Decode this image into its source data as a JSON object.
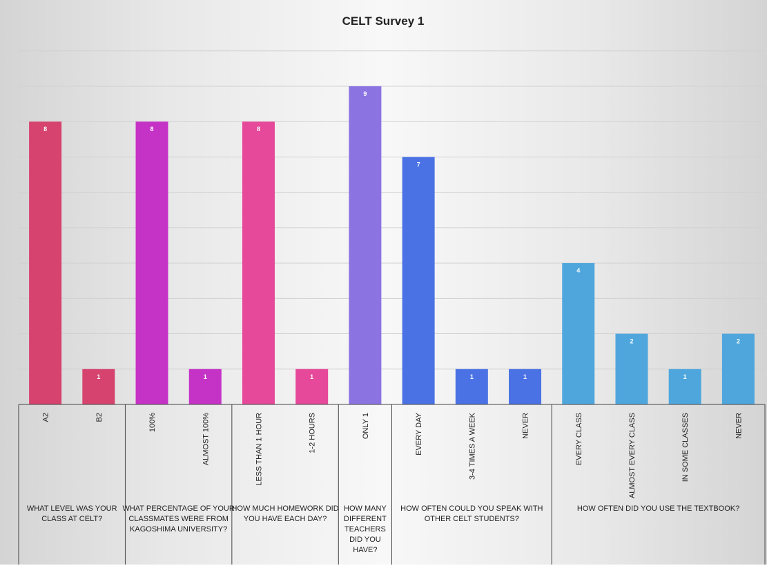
{
  "chart_data": {
    "type": "bar",
    "title": "CELT Survey 1",
    "ylim": [
      0,
      9
    ],
    "grid": true,
    "legend": "none",
    "groups": [
      {
        "question": "WHAT LEVEL WAS YOUR CLASS AT CELT?",
        "color": "#d6436f",
        "bars": [
          {
            "category": "A2",
            "value": 8
          },
          {
            "category": "B2",
            "value": 1
          }
        ]
      },
      {
        "question": "WHAT PERCENTAGE OF YOUR CLASSMATES WERE FROM KAGOSHIMA UNIVERSITY?",
        "color": "#c532c6",
        "bars": [
          {
            "category": "100%",
            "value": 8
          },
          {
            "category": "ALMOST 100%",
            "value": 1
          }
        ]
      },
      {
        "question": "HOW MUCH HOMEWORK DID YOU HAVE EACH DAY?",
        "color": "#e6489a",
        "bars": [
          {
            "category": "LESS THAN 1 HOUR",
            "value": 8
          },
          {
            "category": "1-2 HOURS",
            "value": 1
          }
        ]
      },
      {
        "question": "HOW MANY DIFFERENT TEACHERS DID YOU HAVE?",
        "color": "#8b74e2",
        "bars": [
          {
            "category": "ONLY 1",
            "value": 9
          }
        ]
      },
      {
        "question": "HOW OFTEN COULD YOU SPEAK WITH OTHER CELT STUDENTS?",
        "color": "#4a72e4",
        "bars": [
          {
            "category": "EVERY DAY",
            "value": 7
          },
          {
            "category": "3-4 TIMES A WEEK",
            "value": 1
          },
          {
            "category": "NEVER",
            "value": 1
          }
        ]
      },
      {
        "question": "HOW OFTEN DID YOU USE THE TEXTBOOK?",
        "color": "#4ea6dd",
        "bars": [
          {
            "category": "EVERY CLASS",
            "value": 4
          },
          {
            "category": "ALMOST EVERY CLASS",
            "value": 2
          },
          {
            "category": "IN SOME CLASSES",
            "value": 1
          },
          {
            "category": "NEVER",
            "value": 2
          }
        ]
      }
    ]
  }
}
